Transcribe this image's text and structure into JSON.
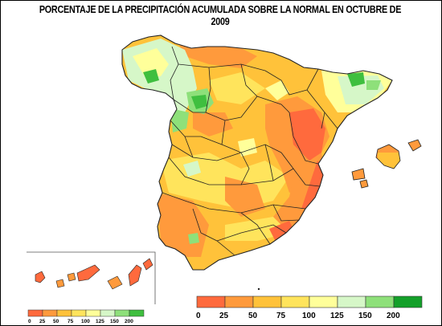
{
  "title": "PORCENTAJE DE LA PRECIPITACIÓN  ACUMULADA SOBRE LA NORMAL EN OCTUBRE DE 2009",
  "legend": {
    "colors": [
      "#ff6a3d",
      "#ff9a3c",
      "#ffc23a",
      "#ffe45c",
      "#ffff9a",
      "#d6f7c8",
      "#8ee07a",
      "#3fbf3f",
      "#14a02a"
    ],
    "labels": [
      "0",
      "25",
      "50",
      "75",
      "100",
      "125",
      "150",
      "200"
    ]
  },
  "small_legend": {
    "labels": [
      "0",
      "25",
      "50",
      "75",
      "100",
      "125",
      "150",
      "200"
    ]
  }
}
